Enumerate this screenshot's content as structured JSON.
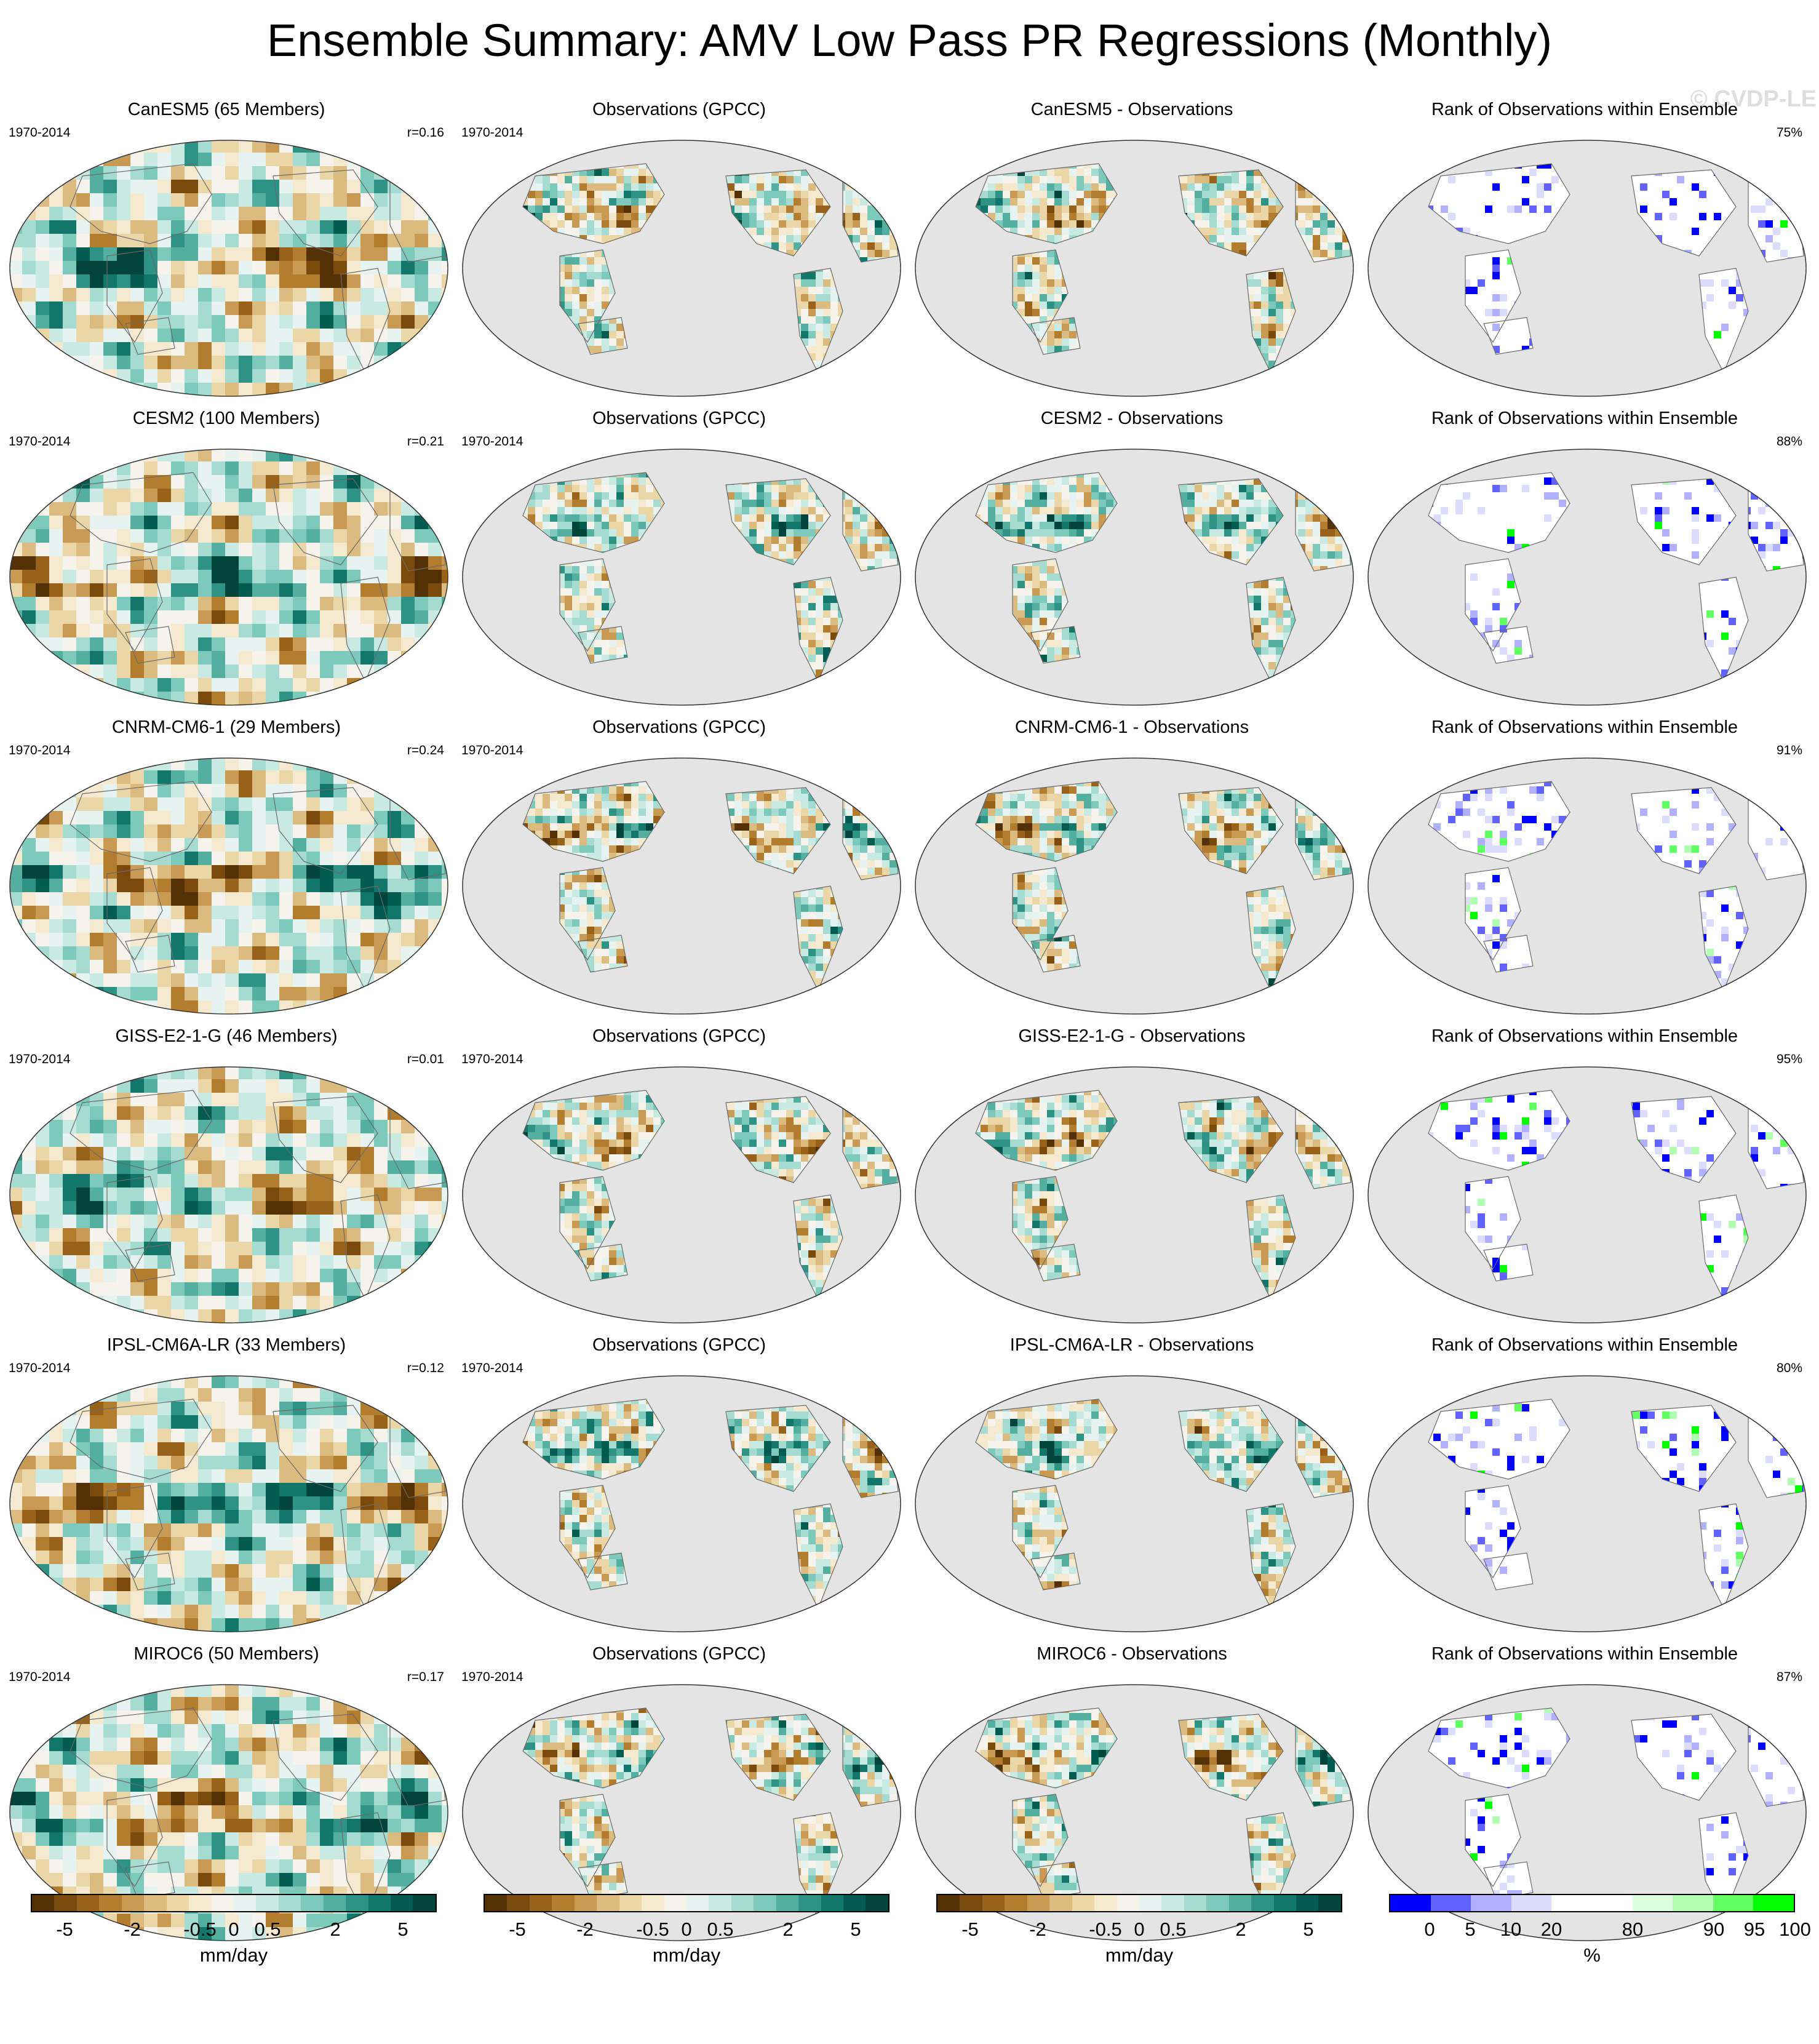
{
  "title": "Ensemble Summary: AMV Low Pass PR Regressions (Monthly)",
  "watermark": "© CVDP-LE",
  "period": "1970-2014",
  "rows": [
    {
      "model": "CanESM5 (65 Members)",
      "r": "r=0.16",
      "obs": "Observations (GPCC)",
      "diff": "CanESM5 - Observations",
      "rank_title": "Rank of Observations within Ensemble",
      "rank_pct": "75%",
      "pattern": 0
    },
    {
      "model": "CESM2 (100 Members)",
      "r": "r=0.21",
      "obs": "Observations (GPCC)",
      "diff": "CESM2 - Observations",
      "rank_title": "Rank of Observations within Ensemble",
      "rank_pct": "88%",
      "pattern": 1
    },
    {
      "model": "CNRM-CM6-1 (29 Members)",
      "r": "r=0.24",
      "obs": "Observations (GPCC)",
      "diff": "CNRM-CM6-1 - Observations",
      "rank_title": "Rank of Observations within Ensemble",
      "rank_pct": "91%",
      "pattern": 2
    },
    {
      "model": "GISS-E2-1-G (46 Members)",
      "r": "r=0.01",
      "obs": "Observations (GPCC)",
      "diff": "GISS-E2-1-G - Observations",
      "rank_title": "Rank of Observations within Ensemble",
      "rank_pct": "95%",
      "pattern": 3
    },
    {
      "model": "IPSL-CM6A-LR (33 Members)",
      "r": "r=0.12",
      "obs": "Observations (GPCC)",
      "diff": "IPSL-CM6A-LR - Observations",
      "rank_title": "Rank of Observations within Ensemble",
      "rank_pct": "80%",
      "pattern": 4
    },
    {
      "model": "MIROC6 (50 Members)",
      "r": "r=0.17",
      "obs": "Observations (GPCC)",
      "diff": "MIROC6 - Observations",
      "rank_title": "Rank of Observations within Ensemble",
      "rank_pct": "87%",
      "pattern": 5
    }
  ],
  "colorbars": {
    "regression": {
      "unit": "mm/day",
      "ticks": [
        "-5",
        "-2",
        "-0.5",
        "0",
        "0.5",
        "2",
        "5"
      ],
      "colors": [
        "#543005",
        "#7a4a0c",
        "#98621a",
        "#b37d30",
        "#c89a54",
        "#dbbb7f",
        "#ebd6a8",
        "#f5ead0",
        "#f6f3ec",
        "#e6f3f1",
        "#c9e9e3",
        "#a5dbd1",
        "#7dc9bc",
        "#54afa1",
        "#2e9385",
        "#12766a",
        "#045b50",
        "#01443b"
      ]
    },
    "rank": {
      "unit": "%",
      "ticks": [
        "0",
        "5",
        "10",
        "20",
        "80",
        "90",
        "95",
        "100"
      ],
      "colors": [
        "#0000ff",
        "#6262ff",
        "#b0b0ff",
        "#dcdcff",
        "#ffffff",
        "#ffffff",
        "#dcffdc",
        "#b0ffb0",
        "#62ff62",
        "#00ff00"
      ]
    }
  }
}
